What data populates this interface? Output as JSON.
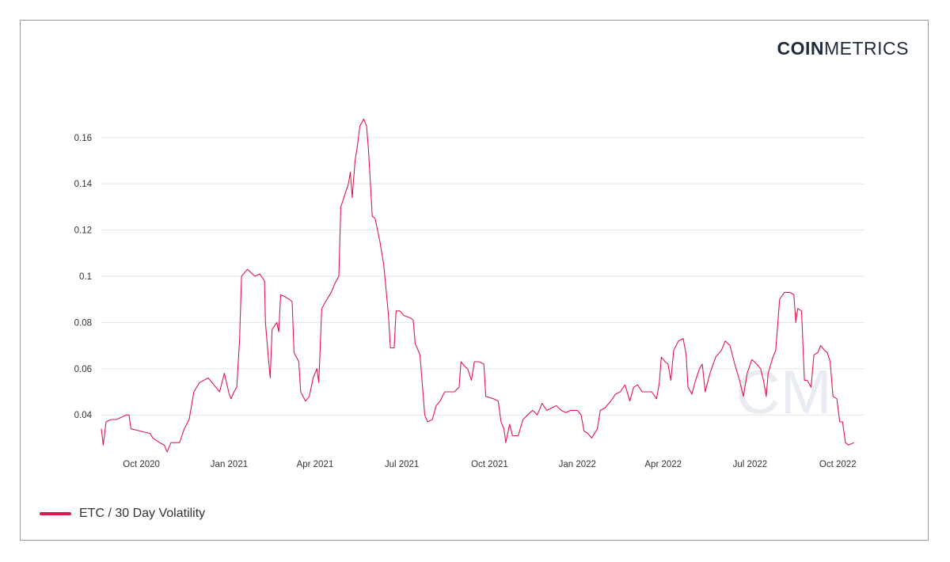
{
  "brand": {
    "bold": "COIN",
    "light": "METRICS"
  },
  "colors": {
    "series": "#e0174f",
    "grid": "#e6e6e6",
    "watermark": "#e9ecf3"
  },
  "watermark_text": "CM",
  "chart_data": {
    "type": "line",
    "title": "",
    "xlabel": "",
    "ylabel": "",
    "x_range": [
      "2020-08-20",
      "2022-10-29"
    ],
    "ylim": [
      0.025,
      0.175
    ],
    "y_ticks": [
      0.04,
      0.06,
      0.08,
      0.1,
      0.12,
      0.14,
      0.16
    ],
    "y_tick_labels": [
      "0.04",
      "0.06",
      "0.08",
      "0.1",
      "0.12",
      "0.14",
      "0.16"
    ],
    "x_ticks": [
      {
        "date": "2020-10-01",
        "label": "Oct 2020"
      },
      {
        "date": "2021-01-01",
        "label": "Jan 2021"
      },
      {
        "date": "2021-04-01",
        "label": "Apr 2021"
      },
      {
        "date": "2021-07-01",
        "label": "Jul 2021"
      },
      {
        "date": "2021-10-01",
        "label": "Oct 2021"
      },
      {
        "date": "2022-01-01",
        "label": "Jan 2022"
      },
      {
        "date": "2022-04-01",
        "label": "Apr 2022"
      },
      {
        "date": "2022-07-01",
        "label": "Jul 2022"
      },
      {
        "date": "2022-10-01",
        "label": "Oct 2022"
      }
    ],
    "grid": true,
    "legend_position": "bottom-left",
    "series": [
      {
        "name": "ETC / 30 Day Volatility",
        "points": [
          [
            "2020-08-20",
            0.034
          ],
          [
            "2020-08-22",
            0.027
          ],
          [
            "2020-08-25",
            0.037
          ],
          [
            "2020-08-30",
            0.038
          ],
          [
            "2020-09-05",
            0.038
          ],
          [
            "2020-09-10",
            0.039
          ],
          [
            "2020-09-15",
            0.04
          ],
          [
            "2020-09-18",
            0.04
          ],
          [
            "2020-09-20",
            0.034
          ],
          [
            "2020-09-30",
            0.033
          ],
          [
            "2020-10-10",
            0.032
          ],
          [
            "2020-10-13",
            0.03
          ],
          [
            "2020-10-20",
            0.028
          ],
          [
            "2020-10-25",
            0.027
          ],
          [
            "2020-10-28",
            0.024
          ],
          [
            "2020-11-01",
            0.028
          ],
          [
            "2020-11-10",
            0.028
          ],
          [
            "2020-11-15",
            0.034
          ],
          [
            "2020-11-20",
            0.038
          ],
          [
            "2020-11-25",
            0.05
          ],
          [
            "2020-12-01",
            0.054
          ],
          [
            "2020-12-10",
            0.056
          ],
          [
            "2020-12-18",
            0.052
          ],
          [
            "2020-12-22",
            0.05
          ],
          [
            "2020-12-27",
            0.058
          ],
          [
            "2021-01-01",
            0.049
          ],
          [
            "2021-01-03",
            0.047
          ],
          [
            "2021-01-06",
            0.05
          ],
          [
            "2021-01-09",
            0.052
          ],
          [
            "2021-01-12",
            0.073
          ],
          [
            "2021-01-14",
            0.1
          ],
          [
            "2021-01-20",
            0.103
          ],
          [
            "2021-01-28",
            0.1
          ],
          [
            "2021-02-02",
            0.101
          ],
          [
            "2021-02-07",
            0.098
          ],
          [
            "2021-02-08",
            0.08
          ],
          [
            "2021-02-11",
            0.065
          ],
          [
            "2021-02-13",
            0.056
          ],
          [
            "2021-02-15",
            0.077
          ],
          [
            "2021-02-20",
            0.08
          ],
          [
            "2021-02-22",
            0.076
          ],
          [
            "2021-02-24",
            0.092
          ],
          [
            "2021-03-01",
            0.091
          ],
          [
            "2021-03-05",
            0.09
          ],
          [
            "2021-03-08",
            0.089
          ],
          [
            "2021-03-10",
            0.067
          ],
          [
            "2021-03-15",
            0.063
          ],
          [
            "2021-03-17",
            0.05
          ],
          [
            "2021-03-22",
            0.046
          ],
          [
            "2021-03-26",
            0.048
          ],
          [
            "2021-03-30",
            0.056
          ],
          [
            "2021-04-03",
            0.06
          ],
          [
            "2021-04-05",
            0.054
          ],
          [
            "2021-04-08",
            0.086
          ],
          [
            "2021-04-12",
            0.089
          ],
          [
            "2021-04-18",
            0.093
          ],
          [
            "2021-04-22",
            0.097
          ],
          [
            "2021-04-26",
            0.1
          ],
          [
            "2021-04-28",
            0.13
          ],
          [
            "2021-05-02",
            0.135
          ],
          [
            "2021-05-06",
            0.14
          ],
          [
            "2021-05-08",
            0.145
          ],
          [
            "2021-05-10",
            0.134
          ],
          [
            "2021-05-13",
            0.15
          ],
          [
            "2021-05-15",
            0.155
          ],
          [
            "2021-05-18",
            0.165
          ],
          [
            "2021-05-22",
            0.168
          ],
          [
            "2021-05-25",
            0.165
          ],
          [
            "2021-05-27",
            0.155
          ],
          [
            "2021-05-31",
            0.126
          ],
          [
            "2021-06-03",
            0.125
          ],
          [
            "2021-06-08",
            0.115
          ],
          [
            "2021-06-12",
            0.105
          ],
          [
            "2021-06-15",
            0.092
          ],
          [
            "2021-06-17",
            0.083
          ],
          [
            "2021-06-19",
            0.069
          ],
          [
            "2021-06-23",
            0.069
          ],
          [
            "2021-06-25",
            0.085
          ],
          [
            "2021-06-29",
            0.085
          ],
          [
            "2021-07-03",
            0.083
          ],
          [
            "2021-07-10",
            0.082
          ],
          [
            "2021-07-13",
            0.081
          ],
          [
            "2021-07-15",
            0.071
          ],
          [
            "2021-07-20",
            0.066
          ],
          [
            "2021-07-25",
            0.04
          ],
          [
            "2021-07-28",
            0.037
          ],
          [
            "2021-08-02",
            0.038
          ],
          [
            "2021-08-06",
            0.044
          ],
          [
            "2021-08-10",
            0.046
          ],
          [
            "2021-08-15",
            0.05
          ],
          [
            "2021-08-20",
            0.05
          ],
          [
            "2021-08-25",
            0.05
          ],
          [
            "2021-08-30",
            0.052
          ],
          [
            "2021-09-01",
            0.063
          ],
          [
            "2021-09-05",
            0.061
          ],
          [
            "2021-09-08",
            0.06
          ],
          [
            "2021-09-12",
            0.055
          ],
          [
            "2021-09-15",
            0.063
          ],
          [
            "2021-09-20",
            0.063
          ],
          [
            "2021-09-25",
            0.062
          ],
          [
            "2021-09-27",
            0.048
          ],
          [
            "2021-10-05",
            0.047
          ],
          [
            "2021-10-10",
            0.046
          ],
          [
            "2021-10-13",
            0.037
          ],
          [
            "2021-10-16",
            0.034
          ],
          [
            "2021-10-18",
            0.028
          ],
          [
            "2021-10-22",
            0.036
          ],
          [
            "2021-10-25",
            0.031
          ],
          [
            "2021-10-31",
            0.031
          ],
          [
            "2021-11-05",
            0.038
          ],
          [
            "2021-11-10",
            0.04
          ],
          [
            "2021-11-15",
            0.042
          ],
          [
            "2021-11-20",
            0.04
          ],
          [
            "2021-11-25",
            0.045
          ],
          [
            "2021-11-30",
            0.042
          ],
          [
            "2021-12-05",
            0.043
          ],
          [
            "2021-12-10",
            0.044
          ],
          [
            "2021-12-15",
            0.042
          ],
          [
            "2021-12-20",
            0.041
          ],
          [
            "2021-12-25",
            0.042
          ],
          [
            "2022-01-01",
            0.042
          ],
          [
            "2022-01-05",
            0.04
          ],
          [
            "2022-01-08",
            0.033
          ],
          [
            "2022-01-12",
            0.032
          ],
          [
            "2022-01-16",
            0.03
          ],
          [
            "2022-01-22",
            0.034
          ],
          [
            "2022-01-25",
            0.042
          ],
          [
            "2022-01-30",
            0.043
          ],
          [
            "2022-02-05",
            0.046
          ],
          [
            "2022-02-10",
            0.049
          ],
          [
            "2022-02-15",
            0.05
          ],
          [
            "2022-02-20",
            0.053
          ],
          [
            "2022-02-25",
            0.046
          ],
          [
            "2022-03-01",
            0.052
          ],
          [
            "2022-03-05",
            0.053
          ],
          [
            "2022-03-10",
            0.05
          ],
          [
            "2022-03-15",
            0.05
          ],
          [
            "2022-03-20",
            0.05
          ],
          [
            "2022-03-25",
            0.047
          ],
          [
            "2022-03-28",
            0.054
          ],
          [
            "2022-03-30",
            0.065
          ],
          [
            "2022-04-03",
            0.063
          ],
          [
            "2022-04-06",
            0.062
          ],
          [
            "2022-04-09",
            0.055
          ],
          [
            "2022-04-12",
            0.068
          ],
          [
            "2022-04-17",
            0.072
          ],
          [
            "2022-04-22",
            0.073
          ],
          [
            "2022-04-25",
            0.066
          ],
          [
            "2022-04-27",
            0.052
          ],
          [
            "2022-05-01",
            0.049
          ],
          [
            "2022-05-05",
            0.055
          ],
          [
            "2022-05-09",
            0.06
          ],
          [
            "2022-05-12",
            0.062
          ],
          [
            "2022-05-15",
            0.05
          ],
          [
            "2022-05-20",
            0.058
          ],
          [
            "2022-05-26",
            0.065
          ],
          [
            "2022-06-01",
            0.068
          ],
          [
            "2022-06-05",
            0.072
          ],
          [
            "2022-06-10",
            0.07
          ],
          [
            "2022-06-15",
            0.062
          ],
          [
            "2022-06-20",
            0.055
          ],
          [
            "2022-06-24",
            0.048
          ],
          [
            "2022-06-28",
            0.058
          ],
          [
            "2022-07-03",
            0.064
          ],
          [
            "2022-07-08",
            0.062
          ],
          [
            "2022-07-12",
            0.06
          ],
          [
            "2022-07-15",
            0.055
          ],
          [
            "2022-07-18",
            0.048
          ],
          [
            "2022-07-20",
            0.058
          ],
          [
            "2022-07-25",
            0.065
          ],
          [
            "2022-07-28",
            0.068
          ],
          [
            "2022-08-01",
            0.09
          ],
          [
            "2022-08-06",
            0.093
          ],
          [
            "2022-08-12",
            0.093
          ],
          [
            "2022-08-16",
            0.092
          ],
          [
            "2022-08-18",
            0.08
          ],
          [
            "2022-08-20",
            0.086
          ],
          [
            "2022-08-24",
            0.085
          ],
          [
            "2022-08-27",
            0.055
          ],
          [
            "2022-08-30",
            0.055
          ],
          [
            "2022-09-03",
            0.052
          ],
          [
            "2022-09-06",
            0.066
          ],
          [
            "2022-09-10",
            0.067
          ],
          [
            "2022-09-13",
            0.07
          ],
          [
            "2022-09-17",
            0.068
          ],
          [
            "2022-09-20",
            0.067
          ],
          [
            "2022-09-23",
            0.063
          ],
          [
            "2022-09-26",
            0.048
          ],
          [
            "2022-09-30",
            0.047
          ],
          [
            "2022-10-03",
            0.037
          ],
          [
            "2022-10-06",
            0.037
          ],
          [
            "2022-10-09",
            0.028
          ],
          [
            "2022-10-12",
            0.027
          ],
          [
            "2022-10-18",
            0.028
          ]
        ]
      }
    ]
  }
}
